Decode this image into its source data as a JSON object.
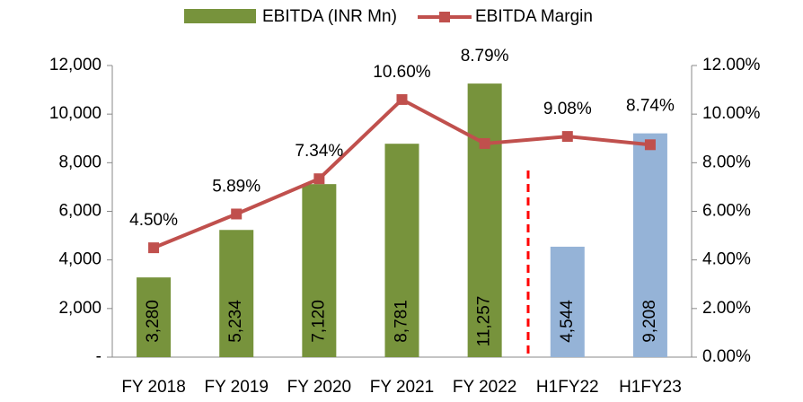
{
  "chart_data": {
    "type": "bar",
    "categories": [
      "FY 2018",
      "FY 2019",
      "FY 2020",
      "FY 2021",
      "FY 2022",
      "H1FY22",
      "H1FY23"
    ],
    "series": [
      {
        "name": "EBITDA (INR Mn)",
        "type": "bar",
        "color": "#77933c",
        "colors": [
          "#77933c",
          "#77933c",
          "#77933c",
          "#77933c",
          "#77933c",
          "#95b3d7",
          "#95b3d7"
        ],
        "values": [
          3280,
          5234,
          7120,
          8781,
          11257,
          4544,
          9208
        ],
        "value_labels": [
          "3,280",
          "5,234",
          "7,120",
          "8,781",
          "11,257",
          "4,544",
          "9,208"
        ]
      },
      {
        "name": "EBITDA Margin",
        "type": "line",
        "color": "#c0504d",
        "axis": "y2",
        "values": [
          4.5,
          5.89,
          7.34,
          10.6,
          8.79,
          9.08,
          8.74
        ],
        "value_labels": [
          "4.50%",
          "5.89%",
          "7.34%",
          "10.60%",
          "8.79%",
          "9.08%",
          "8.74%"
        ]
      }
    ],
    "ylim": [
      0,
      12000
    ],
    "yticks": [
      {
        "value": 0,
        "label": "-"
      },
      {
        "value": 2000,
        "label": "2,000"
      },
      {
        "value": 4000,
        "label": "4,000"
      },
      {
        "value": 6000,
        "label": "6,000"
      },
      {
        "value": 8000,
        "label": "8,000"
      },
      {
        "value": 10000,
        "label": "10,000"
      },
      {
        "value": 12000,
        "label": "12,000"
      }
    ],
    "y2lim": [
      0,
      12
    ],
    "y2ticks": [
      {
        "value": 0,
        "label": "0.00%"
      },
      {
        "value": 2,
        "label": "2.00%"
      },
      {
        "value": 4,
        "label": "4.00%"
      },
      {
        "value": 6,
        "label": "6.00%"
      },
      {
        "value": 8,
        "label": "8.00%"
      },
      {
        "value": 10,
        "label": "10.00%"
      },
      {
        "value": 12,
        "label": "12.00%"
      }
    ],
    "legend": "top"
  }
}
